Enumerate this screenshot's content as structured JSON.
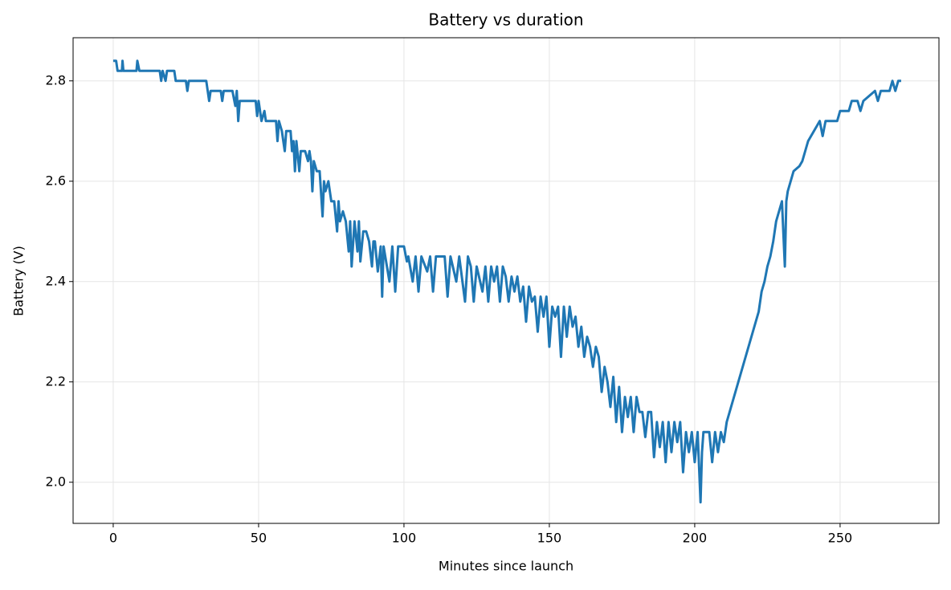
{
  "chart_data": {
    "type": "line",
    "title": "Battery vs duration",
    "xlabel": "Minutes since launch",
    "ylabel": "Battery (V)",
    "x": [
      0,
      1,
      1.5,
      3,
      3.2,
      3.5,
      8,
      8.3,
      9,
      16,
      16.5,
      17,
      18,
      18.5,
      21,
      21.5,
      23,
      25,
      25.5,
      26,
      32,
      32.5,
      33,
      33.5,
      37,
      37.5,
      38,
      41,
      42,
      42.5,
      43,
      43.5,
      49,
      49.5,
      50,
      51,
      52,
      52.5,
      56,
      56.5,
      57,
      58,
      59,
      59.5,
      61,
      61.5,
      62,
      62.5,
      63,
      64,
      64.5,
      66,
      67,
      67.5,
      68,
      68.5,
      69,
      70,
      71,
      72,
      72.5,
      73,
      74,
      75,
      76,
      77,
      77.5,
      78,
      79,
      80,
      81,
      81.5,
      82,
      83,
      84,
      84.5,
      85,
      86,
      87,
      88,
      89,
      89.5,
      90,
      91,
      92,
      92.5,
      93,
      95,
      96,
      97,
      98,
      100,
      101,
      101.5,
      103,
      104,
      105,
      106,
      108,
      109,
      110,
      111,
      114,
      115,
      116,
      118,
      119,
      121,
      122,
      123,
      124,
      125,
      127,
      128,
      129,
      130,
      131,
      132,
      133,
      134,
      135,
      136,
      137,
      138,
      139,
      140,
      141,
      142,
      143,
      144,
      145,
      146,
      147,
      148,
      149,
      150,
      151,
      152,
      153,
      154,
      155,
      156,
      157,
      158,
      159,
      160,
      161,
      162,
      163,
      164,
      165,
      166,
      167,
      168,
      169,
      170,
      171,
      172,
      173,
      174,
      175,
      176,
      177,
      178,
      179,
      180,
      181,
      182,
      183,
      184,
      185,
      186,
      187,
      188,
      189,
      190,
      191,
      192,
      193,
      194,
      195,
      196,
      197,
      198,
      199,
      200,
      201,
      202,
      202.5,
      203,
      205,
      206,
      207,
      208,
      209,
      210,
      211,
      212,
      213,
      214,
      215,
      216,
      217,
      218,
      219,
      220,
      221,
      222,
      223,
      224,
      225,
      226,
      227,
      228,
      229,
      230,
      231,
      231.5,
      232,
      233,
      234,
      236,
      237,
      238,
      239,
      241,
      243,
      244,
      245,
      249,
      250,
      253,
      254,
      256,
      257,
      258,
      262,
      263,
      264,
      267,
      268,
      269,
      270,
      271
    ],
    "series": [
      {
        "name": "Battery",
        "color": "#1f77b4",
        "values": [
          2.84,
          2.84,
          2.82,
          2.82,
          2.84,
          2.82,
          2.82,
          2.84,
          2.82,
          2.82,
          2.8,
          2.82,
          2.8,
          2.82,
          2.82,
          2.8,
          2.8,
          2.8,
          2.78,
          2.8,
          2.8,
          2.78,
          2.76,
          2.78,
          2.78,
          2.76,
          2.78,
          2.78,
          2.75,
          2.78,
          2.72,
          2.76,
          2.76,
          2.73,
          2.76,
          2.72,
          2.74,
          2.72,
          2.72,
          2.68,
          2.72,
          2.7,
          2.66,
          2.7,
          2.7,
          2.66,
          2.68,
          2.62,
          2.68,
          2.62,
          2.66,
          2.66,
          2.64,
          2.66,
          2.64,
          2.58,
          2.64,
          2.62,
          2.62,
          2.53,
          2.6,
          2.58,
          2.6,
          2.56,
          2.56,
          2.5,
          2.56,
          2.52,
          2.54,
          2.52,
          2.46,
          2.52,
          2.43,
          2.52,
          2.46,
          2.52,
          2.44,
          2.5,
          2.5,
          2.48,
          2.43,
          2.48,
          2.48,
          2.42,
          2.47,
          2.37,
          2.47,
          2.4,
          2.47,
          2.38,
          2.47,
          2.47,
          2.44,
          2.45,
          2.4,
          2.45,
          2.38,
          2.45,
          2.42,
          2.45,
          2.38,
          2.45,
          2.45,
          2.37,
          2.45,
          2.4,
          2.45,
          2.36,
          2.45,
          2.43,
          2.36,
          2.43,
          2.38,
          2.43,
          2.36,
          2.43,
          2.4,
          2.43,
          2.36,
          2.43,
          2.41,
          2.36,
          2.41,
          2.38,
          2.41,
          2.36,
          2.39,
          2.32,
          2.39,
          2.36,
          2.37,
          2.3,
          2.37,
          2.33,
          2.37,
          2.27,
          2.35,
          2.33,
          2.35,
          2.25,
          2.35,
          2.29,
          2.35,
          2.31,
          2.33,
          2.27,
          2.31,
          2.25,
          2.29,
          2.27,
          2.23,
          2.27,
          2.25,
          2.18,
          2.23,
          2.2,
          2.15,
          2.21,
          2.12,
          2.19,
          2.1,
          2.17,
          2.13,
          2.17,
          2.1,
          2.17,
          2.14,
          2.14,
          2.09,
          2.14,
          2.14,
          2.05,
          2.12,
          2.07,
          2.12,
          2.04,
          2.12,
          2.06,
          2.12,
          2.08,
          2.12,
          2.02,
          2.1,
          2.06,
          2.1,
          2.04,
          2.1,
          1.96,
          2.06,
          2.1,
          2.1,
          2.04,
          2.1,
          2.06,
          2.1,
          2.08,
          2.12,
          2.14,
          2.16,
          2.18,
          2.2,
          2.22,
          2.24,
          2.26,
          2.28,
          2.3,
          2.32,
          2.34,
          2.38,
          2.4,
          2.43,
          2.45,
          2.48,
          2.52,
          2.54,
          2.56,
          2.43,
          2.56,
          2.58,
          2.6,
          2.62,
          2.63,
          2.64,
          2.66,
          2.68,
          2.7,
          2.72,
          2.69,
          2.72,
          2.72,
          2.74,
          2.74,
          2.76,
          2.76,
          2.74,
          2.76,
          2.78,
          2.76,
          2.78,
          2.78,
          2.8,
          2.78,
          2.8,
          2.8
        ]
      }
    ],
    "xlim": [
      -13.8,
      284
    ],
    "ylim": [
      1.918,
      2.886
    ],
    "xticks": [
      0,
      50,
      100,
      150,
      200,
      250
    ],
    "yticks": [
      {
        "value": 2,
        "label": "2.0"
      },
      2.2,
      2.4,
      2.6,
      2.8
    ],
    "grid": true
  }
}
